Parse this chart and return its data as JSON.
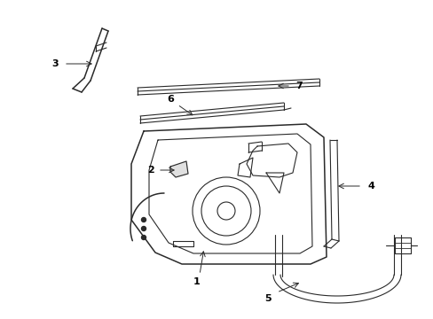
{
  "background_color": "#ffffff",
  "line_color": "#2a2a2a",
  "label_color": "#000000",
  "figure_width": 4.89,
  "figure_height": 3.6,
  "dpi": 100
}
